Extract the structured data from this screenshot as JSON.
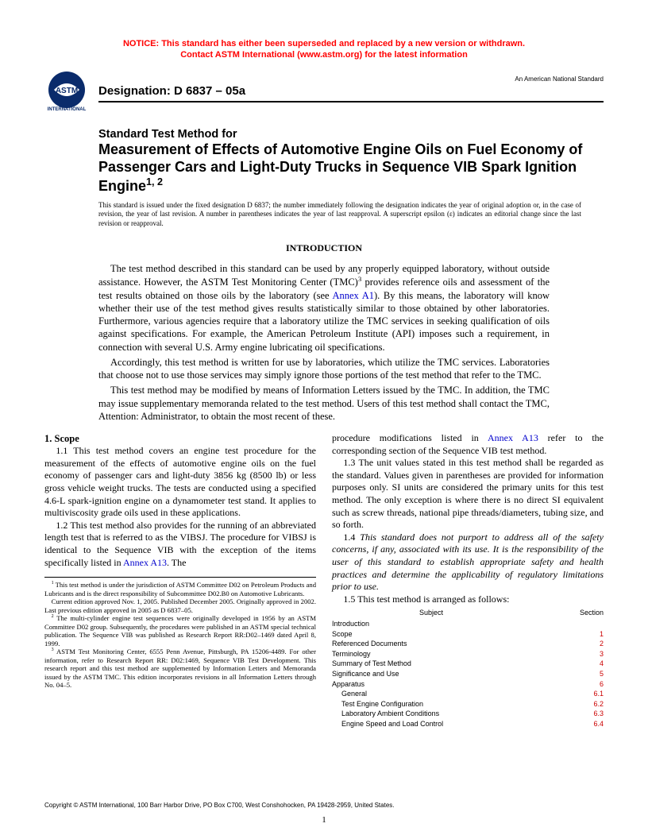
{
  "notice": {
    "line1": "NOTICE: This standard has either been superseded and replaced by a new version or withdrawn.",
    "line2": "Contact ASTM International (www.astm.org) for the latest information"
  },
  "header": {
    "designation": "Designation: D 6837 – 05a",
    "ans": "An American National Standard"
  },
  "title": {
    "pre": "Standard Test Method for",
    "main": "Measurement of Effects of Automotive Engine Oils on Fuel Economy of Passenger Cars and Light-Duty Trucks in Sequence VIB Spark Ignition Engine",
    "sup": "1, 2"
  },
  "issuance": "This standard is issued under the fixed designation D 6837; the number immediately following the designation indicates the year of original adoption or, in the case of revision, the year of last revision. A number in parentheses indicates the year of last reapproval. A superscript epsilon (ε) indicates an editorial change since the last revision or reapproval.",
  "intro": {
    "heading": "INTRODUCTION",
    "p1a": "The test method described in this standard can be used by any properly equipped laboratory, without outside assistance. However, the ASTM Test Monitoring Center (TMC)",
    "p1b": " provides reference oils and assessment of the test results obtained on those oils by the laboratory (see ",
    "p1_link": "Annex A1",
    "p1c": "). By this means, the laboratory will know whether their use of the test method gives results statistically similar to those obtained by other laboratories. Furthermore, various agencies require that a laboratory utilize the TMC services in seeking qualification of oils against specifications. For example, the American Petroleum Institute (API) imposes such a requirement, in connection with several U.S. Army engine lubricating oil specifications.",
    "p2": "Accordingly, this test method is written for use by laboratories, which utilize the TMC services. Laboratories that choose not to use those services may simply ignore those portions of the test method that refer to the TMC.",
    "p3": "This test method may be modified by means of Information Letters issued by the TMC. In addition, the TMC may issue supplementary memoranda related to the test method. Users of this test method shall contact the TMC, Attention: Administrator, to obtain the most recent of these."
  },
  "scope": {
    "heading": "1. Scope",
    "p11": "1.1 This test method covers an engine test procedure for the measurement of the effects of automotive engine oils on the fuel economy of passenger cars and light-duty 3856 kg (8500 lb) or less gross vehicle weight trucks. The tests are conducted using a specified 4.6-L spark-ignition engine on a dynamometer test stand. It applies to multiviscosity grade oils used in these applications.",
    "p12a": "1.2 This test method also provides for the running of an abbreviated length test that is referred to as the VIBSJ. The procedure for VIBSJ is identical to the Sequence VIB with the exception of the items specifically listed in ",
    "p12_link": "Annex A13",
    "p12b": ". The",
    "p12c_a": "procedure modifications listed in ",
    "p12c_link": "Annex A13",
    "p12c_b": " refer to the corresponding section of the Sequence VIB test method.",
    "p13": "1.3 The unit values stated in this test method shall be regarded as the standard. Values given in parentheses are provided for information purposes only. SI units are considered the primary units for this test method. The only exception is where there is no direct SI equivalent such as screw threads, national pipe threads/diameters, tubing size, and so forth.",
    "p14": "1.4 This standard does not purport to address all of the safety concerns, if any, associated with its use. It is the responsibility of the user of this standard to establish appropriate safety and health practices and determine the applicability of regulatory limitations prior to use.",
    "p15": "1.5 This test method is arranged as follows:"
  },
  "subjects": {
    "header_subject": "Subject",
    "header_section": "Section",
    "rows": [
      {
        "subject": "Introduction",
        "section": "",
        "indent": 1
      },
      {
        "subject": "Scope",
        "section": "1",
        "indent": 1
      },
      {
        "subject": "Referenced Documents",
        "section": "2",
        "indent": 1
      },
      {
        "subject": "Terminology",
        "section": "3",
        "indent": 1
      },
      {
        "subject": "Summary of Test Method",
        "section": "4",
        "indent": 1
      },
      {
        "subject": "Significance and Use",
        "section": "5",
        "indent": 1
      },
      {
        "subject": "Apparatus",
        "section": "6",
        "indent": 1
      },
      {
        "subject": "General",
        "section": "6.1",
        "indent": 2
      },
      {
        "subject": "Test Engine Configuration",
        "section": "6.2",
        "indent": 2
      },
      {
        "subject": "Laboratory Ambient Conditions",
        "section": "6.3",
        "indent": 2
      },
      {
        "subject": "Engine Speed and Load Control",
        "section": "6.4",
        "indent": 2
      }
    ]
  },
  "footnotes": {
    "f1": " This test method is under the jurisdiction of ASTM Committee D02 on Petroleum Products and Lubricants and is the direct responsibility of Subcommittee D02.B0 on Automotive Lubricants.",
    "f1b": "Current edition approved Nov. 1, 2005. Published December 2005. Originally approved in 2002. Last previous edition approved in 2005 as D 6837–05.",
    "f2": " The multi-cylinder engine test sequences were originally developed in 1956 by an ASTM Committee D02 group. Subsequently, the procedures were published in an ASTM special technical publication. The Sequence VIB was published as Research Report RR:D02–1469 dated April 8, 1999.",
    "f3": " ASTM Test Monitoring Center, 6555 Penn Avenue, Pittsburgh, PA 15206-4489. For other information, refer to Research Report RR: D02:1469, Sequence VIB Test Development. This research report and this test method are supplemented by Information Letters and Memoranda issued by the ASTM TMC. This edition incorporates revisions in all Information Letters through No. 04–5."
  },
  "copyright": "Copyright © ASTM International, 100 Barr Harbor Drive, PO Box C700, West Conshohocken, PA 19428-2959, United States.",
  "pagenum": "1"
}
